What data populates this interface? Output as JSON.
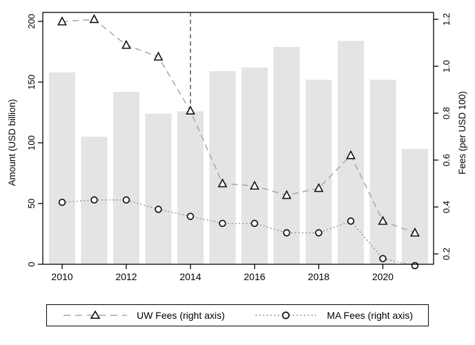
{
  "chart_data": {
    "type": "combo_bar_line_dual_axis",
    "title": "",
    "categories": [
      2010,
      2011,
      2012,
      2013,
      2014,
      2015,
      2016,
      2017,
      2018,
      2019,
      2020,
      2021
    ],
    "series": [
      {
        "name": "Amount",
        "type": "bar",
        "axis": "left",
        "values": [
          158,
          105,
          142,
          124,
          126,
          159,
          162,
          179,
          152,
          184,
          152,
          95
        ]
      },
      {
        "name": "UW Fees (right axis)",
        "type": "line",
        "axis": "right",
        "linestyle": "dashed",
        "marker": "triangle",
        "values": [
          1.19,
          1.2,
          1.09,
          1.04,
          0.81,
          0.5,
          0.49,
          0.45,
          0.48,
          0.62,
          0.34,
          0.29
        ]
      },
      {
        "name": "MA Fees (right axis)",
        "type": "line",
        "axis": "right",
        "linestyle": "dotted",
        "marker": "circle",
        "values": [
          0.42,
          0.43,
          0.43,
          0.39,
          0.36,
          0.33,
          0.33,
          0.29,
          0.29,
          0.34,
          0.18,
          0.15
        ]
      }
    ],
    "left_axis": {
      "label": "Amount (USD billion)",
      "ticks": [
        "0",
        "50",
        "100",
        "150",
        "200"
      ],
      "range": [
        0,
        200
      ]
    },
    "right_axis": {
      "label": "Fees (per USD 100)",
      "ticks": [
        "0.2",
        "0.4",
        "0.6",
        "0.8",
        "1.0",
        "1.2"
      ],
      "range": [
        0.2,
        1.2
      ]
    },
    "x_axis": {
      "label": "",
      "tick_labels": [
        "2010",
        "2012",
        "2014",
        "2016",
        "2018",
        "2020"
      ],
      "tick_values": [
        2010,
        2012,
        2014,
        2016,
        2018,
        2020
      ]
    },
    "annotations": {
      "vline_x": 2014
    },
    "legend": {
      "position": "bottom",
      "entries": [
        "UW Fees (right axis)",
        "MA Fees (right axis)"
      ]
    },
    "grid": false,
    "colors": {
      "bar_fill": "#e4e4e4",
      "uw_line": "#a6a6a6",
      "ma_line": "#8f8f8f",
      "marker_stroke": "#111111",
      "marker_fill": "#ffffff",
      "vline": "#4a4a4a",
      "axis": "#000000"
    }
  }
}
